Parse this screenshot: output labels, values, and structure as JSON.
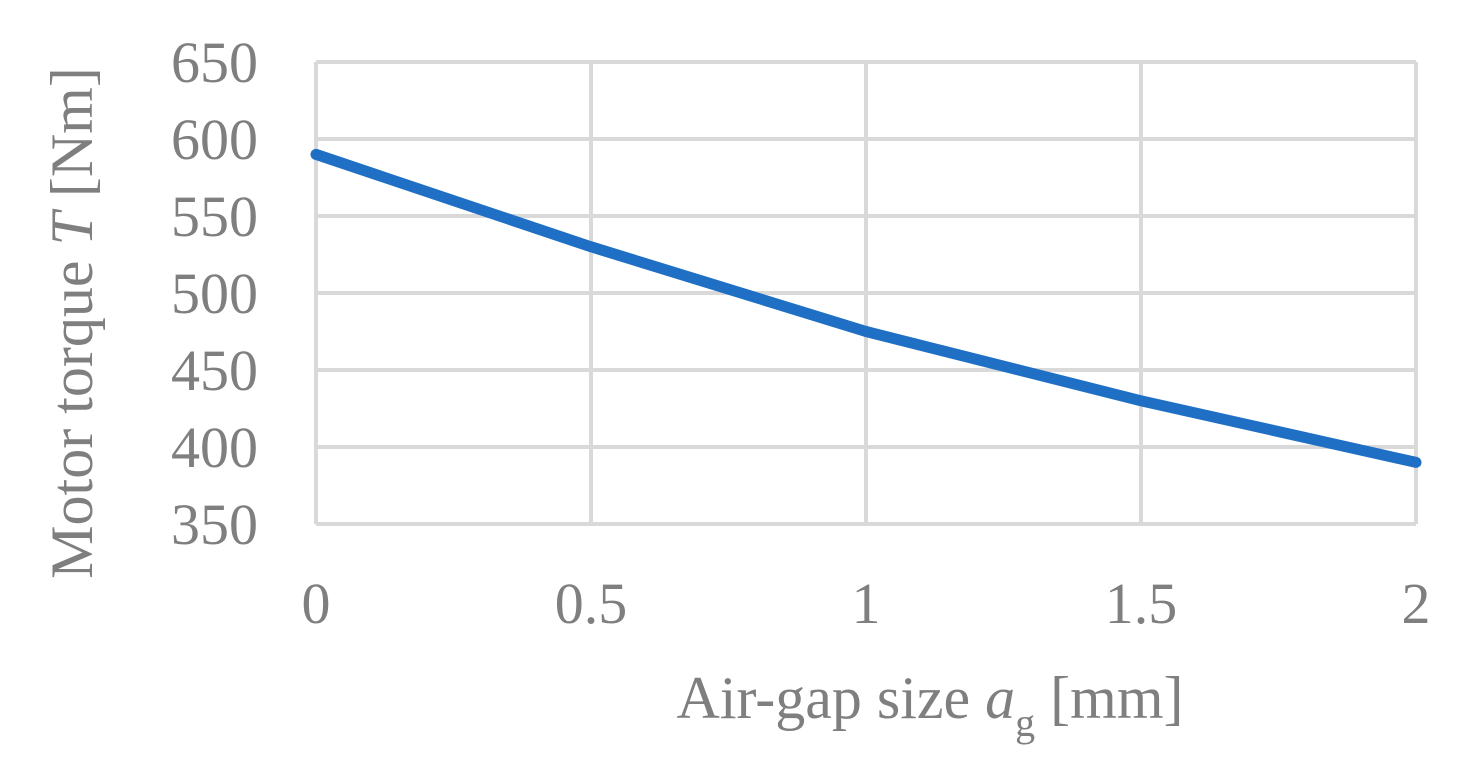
{
  "chart_data": {
    "type": "line",
    "x": [
      0,
      0.5,
      1,
      1.5,
      2
    ],
    "series": [
      {
        "values": [
          590,
          530,
          475,
          430,
          390
        ]
      }
    ],
    "xlabel": {
      "prefix": "Air-gap size ",
      "var": "a",
      "sub": "g",
      "suffix": " [mm]"
    },
    "ylabel": {
      "prefix": "Motor torque ",
      "var": "T",
      "suffix": " [Nm]"
    },
    "x_ticks": [
      "0",
      "0.5",
      "1",
      "1.5",
      "2"
    ],
    "y_ticks": [
      "350",
      "400",
      "450",
      "500",
      "550",
      "600",
      "650"
    ],
    "xlim": [
      0,
      2
    ],
    "ylim": [
      350,
      650
    ],
    "grid": true,
    "legend": "none",
    "colors": {
      "line": "#1f6fc5",
      "grid": "#d9d9d9",
      "text": "#7f7f7f"
    }
  }
}
